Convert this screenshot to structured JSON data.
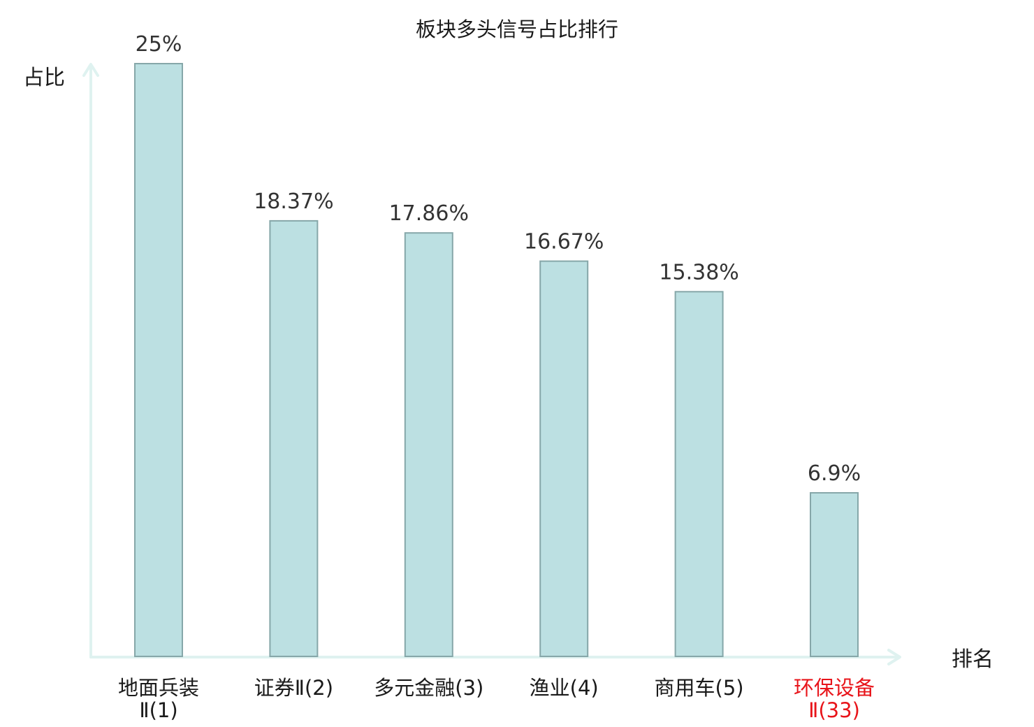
{
  "chart_data": {
    "type": "bar",
    "title": "板块多头信号占比排行",
    "ylabel": "占比",
    "xlabel": "排名",
    "categories": [
      {
        "lines": [
          "地面兵装",
          "Ⅱ(1)"
        ],
        "highlight": false
      },
      {
        "lines": [
          "证券Ⅱ(2)"
        ],
        "highlight": false
      },
      {
        "lines": [
          "多元金融(3)"
        ],
        "highlight": false
      },
      {
        "lines": [
          "渔业(4)"
        ],
        "highlight": false
      },
      {
        "lines": [
          "商用车(5)"
        ],
        "highlight": false
      },
      {
        "lines": [
          "环保设备",
          "Ⅱ(33)"
        ],
        "highlight": true
      }
    ],
    "values": [
      25,
      18.37,
      17.86,
      16.67,
      15.38,
      6.9
    ],
    "value_labels": [
      "25%",
      "18.37%",
      "17.86%",
      "16.67%",
      "15.38%",
      "6.9%"
    ],
    "ylim": [
      0,
      25
    ],
    "grid": false,
    "legend": "none"
  },
  "colors": {
    "bar_fill": "#bce0e2",
    "bar_stroke": "#86a7a9",
    "axis": "#dff2f0",
    "text": "#1a1a1a",
    "value_text": "#333333",
    "highlight": "#e8141a"
  }
}
